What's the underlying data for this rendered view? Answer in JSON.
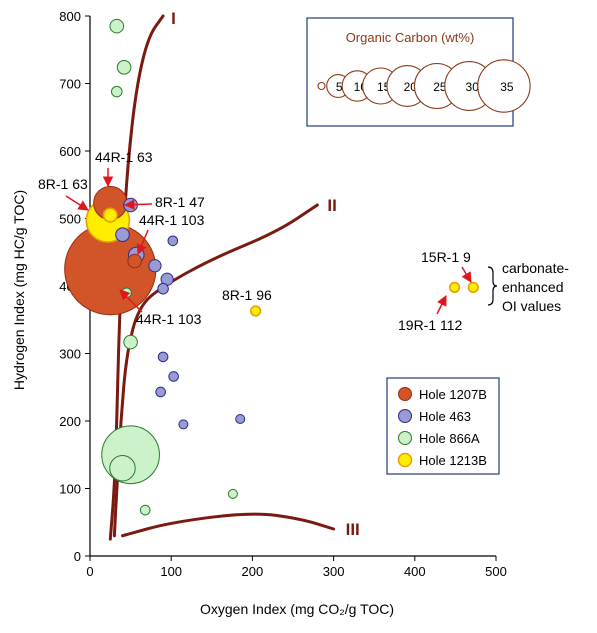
{
  "chart_data": {
    "type": "scatter",
    "xlabel": "Oxygen Index (mg CO₂/g TOC)",
    "ylabel": "Hydrogen Index (mg HC/g TOC)",
    "xlim": [
      0,
      500
    ],
    "ylim": [
      0,
      800
    ],
    "xticks": [
      "0",
      "100",
      "200",
      "300",
      "400",
      "500"
    ],
    "yticks": [
      "0",
      "100",
      "200",
      "300",
      "400",
      "500",
      "600",
      "700",
      "800"
    ],
    "legend_position": "right",
    "series": [
      {
        "name": "Hole 1207B",
        "color": "#d2552a",
        "points": [
          {
            "x": 25,
            "y": 425,
            "toc": 45
          },
          {
            "x": 25,
            "y": 523,
            "toc": 6
          },
          {
            "x": 55,
            "y": 437,
            "toc": 1
          }
        ]
      },
      {
        "name": "Hole 463",
        "color": "#9a9ad4",
        "points": [
          {
            "x": 50,
            "y": 520,
            "toc": 1
          },
          {
            "x": 40,
            "y": 476,
            "toc": 1
          },
          {
            "x": 57,
            "y": 446,
            "toc": 1.3
          },
          {
            "x": 102,
            "y": 467,
            "toc": 0.5
          },
          {
            "x": 80,
            "y": 430,
            "toc": 0.8
          },
          {
            "x": 95,
            "y": 410,
            "toc": 0.8
          },
          {
            "x": 90,
            "y": 396,
            "toc": 0.6
          },
          {
            "x": 90,
            "y": 295,
            "toc": 0.5
          },
          {
            "x": 103,
            "y": 266,
            "toc": 0.5
          },
          {
            "x": 87,
            "y": 243,
            "toc": 0.5
          },
          {
            "x": 115,
            "y": 195,
            "toc": 0.3
          },
          {
            "x": 185,
            "y": 203,
            "toc": 0.3
          }
        ]
      },
      {
        "name": "Hole 866A",
        "color": "#ccf2cc",
        "points": [
          {
            "x": 33,
            "y": 785,
            "toc": 1
          },
          {
            "x": 42,
            "y": 724,
            "toc": 1
          },
          {
            "x": 33,
            "y": 688,
            "toc": 0.6
          },
          {
            "x": 45,
            "y": 390,
            "toc": 0.5
          },
          {
            "x": 50,
            "y": 317,
            "toc": 1
          },
          {
            "x": 50,
            "y": 150,
            "toc": 18
          },
          {
            "x": 40,
            "y": 130,
            "toc": 3.5
          },
          {
            "x": 68,
            "y": 68,
            "toc": 0.5
          },
          {
            "x": 176,
            "y": 92,
            "toc": 0.3
          }
        ]
      },
      {
        "name": "Hole 1213B",
        "color": "#ffee00",
        "points": [
          {
            "x": 22,
            "y": 497,
            "toc": 10
          },
          {
            "x": 25,
            "y": 505,
            "toc": 1
          },
          {
            "x": 204,
            "y": 363,
            "toc": 0.5
          },
          {
            "x": 449,
            "y": 398,
            "toc": 0.5
          },
          {
            "x": 472,
            "y": 398,
            "toc": 0.5
          }
        ]
      }
    ],
    "curves": [
      {
        "label": "I",
        "points": [
          [
            25,
            25
          ],
          [
            30,
            100
          ],
          [
            33,
            200
          ],
          [
            35,
            300
          ],
          [
            38,
            400
          ],
          [
            42,
            500
          ],
          [
            48,
            600
          ],
          [
            58,
            700
          ],
          [
            72,
            770
          ],
          [
            90,
            800
          ]
        ]
      },
      {
        "label": "II",
        "points": [
          [
            30,
            30
          ],
          [
            33,
            100
          ],
          [
            38,
            200
          ],
          [
            45,
            300
          ],
          [
            60,
            370
          ],
          [
            90,
            400
          ],
          [
            150,
            440
          ],
          [
            230,
            480
          ],
          [
            280,
            520
          ]
        ]
      },
      {
        "label": "III",
        "points": [
          [
            40,
            30
          ],
          [
            100,
            50
          ],
          [
            200,
            65
          ],
          [
            260,
            55
          ],
          [
            300,
            40
          ]
        ]
      }
    ],
    "point_labels": [
      {
        "text": "44R-1 63",
        "arrow_to": [
          25,
          523
        ]
      },
      {
        "text": "8R-1 63",
        "arrow_to": [
          22,
          497
        ]
      },
      {
        "text": "8R-1 47",
        "arrow_to": [
          25,
          505
        ]
      },
      {
        "text": "44R-1 103",
        "arrow_to": [
          55,
          437
        ]
      },
      {
        "text": "44R-1 103",
        "arrow_to": [
          25,
          425
        ]
      },
      {
        "text": "8R-1 96",
        "arrow_to": null
      },
      {
        "text": "15R-1 9",
        "arrow_to": [
          472,
          398
        ]
      },
      {
        "text": "19R-1 112",
        "arrow_to": [
          449,
          398
        ]
      }
    ],
    "annotation": {
      "lines": [
        "carbonate-",
        "enhanced",
        "OI values"
      ]
    },
    "size_legend": {
      "title": "Organic Carbon (wt%)",
      "sizes": [
        "1",
        "5",
        "10",
        "15",
        "20",
        "25",
        "30",
        "35"
      ]
    }
  }
}
